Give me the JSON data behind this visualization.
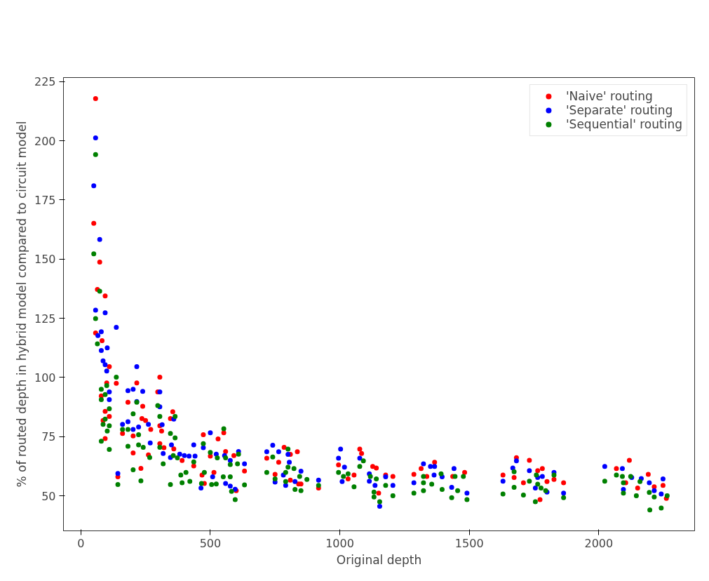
{
  "chart_data": {
    "type": "scatter",
    "xlabel": "Original depth",
    "ylabel": "% of routed depth in hybrid model compared to circuit model",
    "xlim": [
      -67,
      2370
    ],
    "ylim": [
      35.2,
      226.7
    ],
    "xticks": [
      0,
      500,
      1000,
      1500,
      2000
    ],
    "yticks": [
      50,
      75,
      100,
      125,
      150,
      175,
      200,
      225
    ],
    "legend": "top right",
    "grid": false,
    "marker": "circle",
    "series": [
      {
        "name": "'Naive' routing",
        "color": "#ff0000",
        "x": [
          57,
          50,
          73,
          64,
          94,
          57,
          82,
          110,
          137,
          100,
          79,
          94,
          110,
          86,
          94,
          216,
          182,
          239,
          236,
          250,
          270,
          161,
          202,
          202,
          261,
          232,
          143,
          305,
          297,
          305,
          312,
          305,
          321,
          355,
          346,
          359,
          391,
          436,
          473,
          530,
          552,
          500,
          559,
          591,
          632,
          468,
          477,
          514,
          600,
          718,
          764,
          785,
          809,
          836,
          750,
          809,
          850,
          841,
          918,
          995,
          1032,
          1055,
          1077,
          1084,
          1127,
          1141,
          1150,
          1177,
          1205,
          1286,
          1314,
          1366,
          1336,
          1436,
          1482,
          1630,
          1682,
          1673,
          1732,
          1709,
          1764,
          1782,
          1800,
          1773,
          1827,
          1864,
          2068,
          2118,
          2104,
          2150,
          2191,
          2214,
          2248,
          2261
        ],
        "values": [
          217.8,
          165.1,
          148.7,
          137.2,
          134.4,
          118.8,
          115.5,
          104.6,
          97.5,
          97.7,
          92.2,
          85.7,
          83.5,
          81.8,
          74.2,
          97.7,
          89.5,
          87.8,
          82.6,
          81.8,
          78,
          76.3,
          75.3,
          68.1,
          67.3,
          61.6,
          58,
          100.1,
          93.9,
          79.6,
          77.4,
          72,
          70.3,
          85.5,
          82.6,
          69.8,
          64.9,
          62.6,
          75.8,
          74,
          76.6,
          66.8,
          68.7,
          67,
          60.5,
          58.8,
          55.2,
          59.9,
          52.2,
          65.9,
          64.2,
          70.5,
          67.5,
          68.6,
          59.1,
          56.6,
          55,
          55,
          53.3,
          63.1,
          57.1,
          58.8,
          69.7,
          67.9,
          62.4,
          61.7,
          51.1,
          58.8,
          58.2,
          59.1,
          61.5,
          64.2,
          58.2,
          58.2,
          59.9,
          58.8,
          66.1,
          57.7,
          65,
          55.5,
          60.6,
          61.5,
          56,
          48.4,
          56.9,
          55.5,
          61.5,
          65,
          55.5,
          53.3,
          59.1,
          53.8,
          54.4,
          48.9
        ]
      },
      {
        "name": "'Separate' routing",
        "color": "#0000ff",
        "x": [
          57,
          50,
          73,
          57,
          94,
          137,
          79,
          66,
          79,
          102,
          86,
          94,
          100,
          110,
          110,
          216,
          182,
          202,
          239,
          216,
          261,
          161,
          182,
          202,
          223,
          268,
          143,
          305,
          305,
          314,
          318,
          359,
          350,
          346,
          382,
          400,
          418,
          441,
          500,
          436,
          473,
          523,
          555,
          577,
          609,
          632,
          509,
          464,
          559,
          577,
          596,
          718,
          741,
          764,
          800,
          805,
          750,
          782,
          791,
          850,
          827,
          918,
          1003,
          995,
          1018,
          1009,
          1077,
          1114,
          1114,
          1136,
          1154,
          1177,
          1205,
          1286,
          1323,
          1350,
          1366,
          1364,
          1395,
          1441,
          1432,
          1491,
          1630,
          1682,
          1668,
          1732,
          1764,
          1782,
          1755,
          1800,
          1827,
          1864,
          2023,
          2091,
          2127,
          2095,
          2164,
          2195,
          2214,
          2248,
          2241
        ],
        "values": [
          201.2,
          181,
          158.3,
          128.4,
          127.3,
          121.2,
          119.3,
          117.7,
          111.4,
          112.5,
          107,
          105.4,
          102.7,
          93.9,
          90.6,
          104.6,
          94.4,
          95,
          94.1,
          89.8,
          80.2,
          80.2,
          81.3,
          78,
          79.1,
          72.3,
          59.4,
          93.9,
          87.6,
          80,
          67.9,
          82.4,
          71.5,
          66.2,
          67.6,
          67,
          66.8,
          66.8,
          76.6,
          71.5,
          70.3,
          67.6,
          67,
          64.9,
          68.7,
          63.5,
          58,
          53.3,
          55.2,
          54.1,
          52.8,
          68.6,
          71.4,
          68.6,
          67.5,
          64.2,
          55.8,
          58.8,
          54.4,
          60.4,
          56,
          56.6,
          69.7,
          65.9,
          62.1,
          56,
          65.9,
          59.3,
          56.2,
          54.4,
          45.6,
          58,
          54.4,
          55.5,
          63.5,
          62.4,
          62.4,
          58.8,
          58,
          61.5,
          53.6,
          51.1,
          56.2,
          64.8,
          61.7,
          60.6,
          57.7,
          58.2,
          53.3,
          51.6,
          59.9,
          51.1,
          62.4,
          61.5,
          57.7,
          52.7,
          57.3,
          55.5,
          52.2,
          57.1,
          50.8
        ]
      },
      {
        "name": "'Sequential' routing",
        "color": "#008000",
        "x": [
          57,
          50,
          73,
          57,
          64,
          137,
          79,
          100,
          79,
          94,
          110,
          94,
          86,
          110,
          102,
          79,
          110,
          216,
          202,
          161,
          182,
          223,
          182,
          223,
          241,
          266,
          202,
          232,
          143,
          297,
          305,
          305,
          318,
          364,
          346,
          364,
          357,
          373,
          436,
          386,
          406,
          421,
          391,
          346,
          552,
          473,
          500,
          527,
          559,
          609,
          577,
          605,
          477,
          505,
          466,
          523,
          550,
          577,
          582,
          596,
          632,
          718,
          741,
          800,
          800,
          750,
          791,
          791,
          823,
          845,
          873,
          827,
          850,
          918,
          995,
          1014,
          1032,
          1055,
          1091,
          1077,
          1118,
          1141,
          1132,
          1132,
          1154,
          1177,
          1205,
          1286,
          1323,
          1323,
          1355,
          1391,
          1395,
          1323,
          1445,
          1432,
          1455,
          1477,
          1491,
          1630,
          1673,
          1673,
          1709,
          1759,
          1732,
          1764,
          1777,
          1795,
          1755,
          1827,
          1864,
          2023,
          2068,
          2091,
          2095,
          2123,
          2095,
          2159,
          2145,
          2195,
          2214,
          2197,
          2264,
          2241
        ],
        "values": [
          194.2,
          152.2,
          136.4,
          124.9,
          114.2,
          100.1,
          95,
          96.6,
          90.6,
          92.8,
          86.8,
          82.4,
          80.2,
          79.6,
          77.4,
          73.1,
          69.6,
          89.5,
          84.6,
          78,
          78,
          75.8,
          70.9,
          71.5,
          70.5,
          66.2,
          61,
          56.3,
          54.8,
          88.1,
          83.5,
          70.5,
          63.5,
          83.5,
          76.3,
          74.5,
          67,
          66,
          64.3,
          58.8,
          59.9,
          56.1,
          55.5,
          54.8,
          78.3,
          72,
          68.3,
          66,
          66,
          67.6,
          63.2,
          63.5,
          59.9,
          54.8,
          55.2,
          55,
          58,
          58,
          51.9,
          48.4,
          54.6,
          59.9,
          66.4,
          69.7,
          62.1,
          57.1,
          59.9,
          56,
          61.5,
          58.2,
          56.9,
          52.7,
          52.2,
          54.4,
          59.9,
          58.2,
          59.3,
          53.8,
          64.8,
          62.4,
          58.2,
          57.1,
          51.6,
          49.5,
          47.5,
          54.4,
          50,
          51.1,
          58.2,
          55.5,
          54.9,
          59.3,
          52.7,
          52.2,
          58.2,
          49.2,
          52.2,
          58.2,
          48.4,
          50.8,
          60.2,
          53.6,
          50.3,
          58.8,
          56.2,
          54.9,
          53.3,
          52.2,
          47.5,
          58.8,
          49.2,
          56.2,
          58.8,
          58.2,
          55.5,
          58.2,
          51.1,
          56,
          50,
          51.4,
          49.5,
          44,
          50,
          44.8
        ]
      }
    ]
  }
}
